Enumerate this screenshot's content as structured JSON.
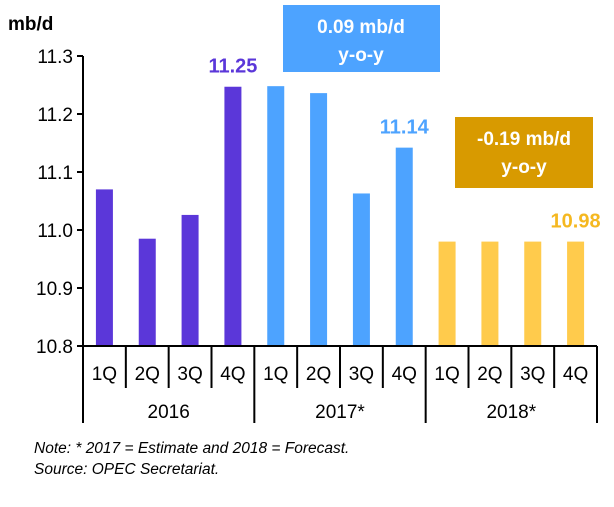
{
  "chart_data": {
    "type": "bar",
    "ylabel": "mb/d",
    "ylim": [
      10.8,
      11.3
    ],
    "yticks": [
      "10.8",
      "10.9",
      "11.0",
      "11.1",
      "11.2",
      "11.3"
    ],
    "categories": [
      "1Q",
      "2Q",
      "3Q",
      "4Q",
      "1Q",
      "2Q",
      "3Q",
      "4Q",
      "1Q",
      "2Q",
      "3Q",
      "4Q"
    ],
    "groups": [
      "2016",
      "2017*",
      "2018*"
    ],
    "values": [
      11.07,
      10.985,
      11.026,
      11.247,
      11.248,
      11.236,
      11.063,
      11.142,
      10.98,
      10.98,
      10.98,
      10.98
    ],
    "colors": [
      "#5b37d9",
      "#5b37d9",
      "#5b37d9",
      "#5b37d9",
      "#4da3ff",
      "#4da3ff",
      "#4da3ff",
      "#4da3ff",
      "#ffcb4c",
      "#ffcb4c",
      "#ffcb4c",
      "#ffcb4c"
    ],
    "data_labels": [
      {
        "index": 3,
        "text": "11.25",
        "color": "#5b37d9"
      },
      {
        "index": 7,
        "text": "11.14",
        "color": "#4da3ff"
      },
      {
        "index": 11,
        "text": "10.98",
        "color": "#f5b820"
      }
    ],
    "annotations": [
      {
        "line1": "0.09  mb/d",
        "line2": "y-o-y",
        "color": "#4da3ff"
      },
      {
        "line1": "-0.19  mb/d",
        "line2": "y-o-y",
        "color": "#d89a00"
      }
    ],
    "grid": false
  },
  "notes": {
    "note": "Note: * 2017 = Estimate and 2018 = Forecast.",
    "source": "Source: OPEC Secretariat."
  }
}
